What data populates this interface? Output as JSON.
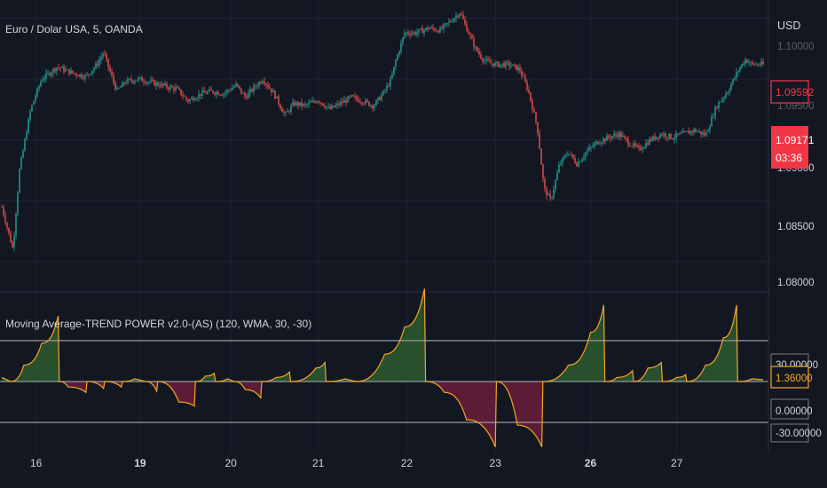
{
  "header": {
    "symbol_title": "Euro / Dolar USA, 5, OANDA",
    "currency": "USD"
  },
  "indicator": {
    "title": "Moving Average-TREND POWER v2.0-(AS) (120, WMA, 30, -30)"
  },
  "colors": {
    "background": "#131722",
    "grid": "#1f2433",
    "candle_up": "#26a69a",
    "candle_down": "#ef5350",
    "price_badge": "#f23645",
    "osc_line": "#f5a623",
    "osc_pos_fill": "#2e5b2e",
    "osc_neg_fill": "#6b1d3a",
    "level_line": "#9598a1"
  },
  "chart_data": [
    {
      "type": "candlestick",
      "title": "Euro / Dolar USA, 5, OANDA",
      "price_axis_currency": "USD",
      "ylim": [
        1.0775,
        1.1015
      ],
      "y_ticks": [
        "1.09000",
        "1.08500",
        "1.08000"
      ],
      "x_ticks": [
        {
          "label": "16",
          "bold": false
        },
        {
          "label": "19",
          "bold": true
        },
        {
          "label": "20",
          "bold": false
        },
        {
          "label": "21",
          "bold": false
        },
        {
          "label": "22",
          "bold": false
        },
        {
          "label": "23",
          "bold": false
        },
        {
          "label": "26",
          "bold": true
        },
        {
          "label": "27",
          "bold": false
        }
      ],
      "price_path": [
        [
          0.0,
          1.0845
        ],
        [
          0.5,
          1.081
        ],
        [
          0.8,
          1.0875
        ],
        [
          1.3,
          1.0925
        ],
        [
          1.8,
          1.095
        ],
        [
          2.5,
          1.096
        ],
        [
          3.2,
          1.0955
        ],
        [
          3.8,
          1.0952
        ],
        [
          4.3,
          1.0962
        ],
        [
          4.6,
          1.0972
        ],
        [
          4.85,
          1.0958
        ],
        [
          5.2,
          1.094
        ],
        [
          5.6,
          1.0948
        ],
        [
          6.2,
          1.095
        ],
        [
          6.8,
          1.0947
        ],
        [
          7.4,
          1.0944
        ],
        [
          7.9,
          1.0942
        ],
        [
          8.4,
          1.0932
        ],
        [
          9.0,
          1.0938
        ],
        [
          9.5,
          1.094
        ],
        [
          10.0,
          1.0938
        ],
        [
          10.6,
          1.0945
        ],
        [
          11.0,
          1.0935
        ],
        [
          11.4,
          1.0943
        ],
        [
          11.8,
          1.095
        ],
        [
          12.3,
          1.0938
        ],
        [
          12.8,
          1.092
        ],
        [
          13.2,
          1.093
        ],
        [
          13.7,
          1.0928
        ],
        [
          14.3,
          1.0933
        ],
        [
          14.8,
          1.0925
        ],
        [
          15.3,
          1.093
        ],
        [
          15.8,
          1.0935
        ],
        [
          16.3,
          1.0932
        ],
        [
          16.8,
          1.0928
        ],
        [
          17.3,
          1.094
        ],
        [
          17.6,
          1.095
        ],
        [
          17.8,
          1.0965
        ],
        [
          18.2,
          1.0988
        ],
        [
          18.7,
          1.0988
        ],
        [
          19.3,
          1.0992
        ],
        [
          19.8,
          1.099
        ],
        [
          20.3,
          1.0998
        ],
        [
          20.7,
          1.1005
        ],
        [
          21.0,
          1.0992
        ],
        [
          21.4,
          1.0975
        ],
        [
          21.8,
          1.0965
        ],
        [
          22.3,
          1.0962
        ],
        [
          22.9,
          1.0962
        ],
        [
          23.4,
          1.0958
        ],
        [
          23.8,
          1.094
        ],
        [
          24.2,
          1.091
        ],
        [
          24.5,
          1.086
        ],
        [
          24.8,
          1.085
        ],
        [
          25.2,
          1.088
        ],
        [
          25.6,
          1.089
        ],
        [
          26.0,
          1.088
        ],
        [
          26.4,
          1.089
        ],
        [
          26.9,
          1.0898
        ],
        [
          27.4,
          1.0902
        ],
        [
          27.9,
          1.0905
        ],
        [
          28.3,
          1.0898
        ],
        [
          28.8,
          1.0892
        ],
        [
          29.3,
          1.09
        ],
        [
          29.8,
          1.0905
        ],
        [
          30.3,
          1.0902
        ],
        [
          30.8,
          1.0905
        ],
        [
          31.3,
          1.0908
        ],
        [
          31.8,
          1.0904
        ],
        [
          32.3,
          1.0928
        ],
        [
          32.8,
          1.094
        ],
        [
          33.3,
          1.0958
        ],
        [
          33.6,
          1.0966
        ],
        [
          33.9,
          1.0962
        ],
        [
          34.4,
          1.0962
        ]
      ],
      "x_domain": [
        0,
        34.4
      ],
      "annotations": [
        {
          "kind": "last-price-badge",
          "value": "1.09592"
        },
        {
          "kind": "current-price-badge",
          "value": "1.09171",
          "countdown": "03:36"
        }
      ]
    },
    {
      "type": "area",
      "title": "Moving Average-TREND POWER v2.0-(AS) (120, WMA, 30, -30)",
      "ylim": [
        -52,
        65
      ],
      "levels": [
        30,
        0,
        -30
      ],
      "y_ticks": [
        "30.00000",
        "0.00000",
        "-30.00000"
      ],
      "current_value_badge": "1.36000",
      "series_breakpoints": [
        [
          0.0,
          3
        ],
        [
          0.4,
          0
        ],
        [
          1.0,
          12
        ],
        [
          1.8,
          28
        ],
        [
          2.55,
          48
        ],
        [
          2.6,
          0
        ],
        [
          3.0,
          -4
        ],
        [
          3.8,
          -8
        ],
        [
          3.85,
          0
        ],
        [
          4.6,
          -5
        ],
        [
          4.65,
          0
        ],
        [
          5.4,
          -4
        ],
        [
          5.45,
          0
        ],
        [
          6.0,
          2
        ],
        [
          6.5,
          0
        ],
        [
          7.0,
          -7
        ],
        [
          7.05,
          0
        ],
        [
          8.0,
          -15
        ],
        [
          8.7,
          -18
        ],
        [
          8.75,
          0
        ],
        [
          9.2,
          4
        ],
        [
          9.6,
          6
        ],
        [
          9.65,
          0
        ],
        [
          10.2,
          2
        ],
        [
          10.5,
          0
        ],
        [
          11.0,
          -6
        ],
        [
          11.7,
          -12
        ],
        [
          11.75,
          0
        ],
        [
          12.4,
          3
        ],
        [
          13.0,
          7
        ],
        [
          13.05,
          0
        ],
        [
          14.2,
          10
        ],
        [
          14.6,
          14
        ],
        [
          14.65,
          0
        ],
        [
          15.5,
          2
        ],
        [
          16.0,
          0
        ],
        [
          17.3,
          20
        ],
        [
          18.2,
          40
        ],
        [
          19.1,
          68
        ],
        [
          19.15,
          0
        ],
        [
          20.0,
          -8
        ],
        [
          21.0,
          -28
        ],
        [
          22.3,
          -48
        ],
        [
          22.35,
          0
        ],
        [
          23.3,
          -32
        ],
        [
          24.4,
          -48
        ],
        [
          24.45,
          0
        ],
        [
          25.6,
          12
        ],
        [
          26.6,
          36
        ],
        [
          27.2,
          56
        ],
        [
          27.25,
          0
        ],
        [
          27.8,
          3
        ],
        [
          28.5,
          8
        ],
        [
          28.55,
          0
        ],
        [
          29.2,
          10
        ],
        [
          29.8,
          14
        ],
        [
          29.85,
          0
        ],
        [
          30.5,
          3
        ],
        [
          30.9,
          5
        ],
        [
          30.95,
          0
        ],
        [
          31.8,
          12
        ],
        [
          32.6,
          32
        ],
        [
          33.2,
          56
        ],
        [
          33.25,
          0
        ],
        [
          33.9,
          2
        ],
        [
          34.4,
          1.36
        ]
      ],
      "x_domain": [
        0,
        34.4
      ]
    }
  ]
}
